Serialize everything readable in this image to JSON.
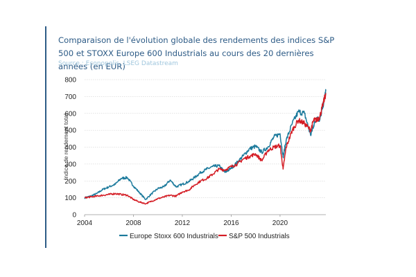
{
  "header": {
    "title": "Comparaison de l'évolution globale des rendements des indices S&P 500 et STOXX Europe 600 Industrials au cours des 20 dernières années (en EUR)",
    "source": "Source : Econopolis, LSEG Datastream"
  },
  "colors": {
    "accent": "#2d5b86",
    "source_text": "#9fc6dd",
    "europe": "#1c7a9c",
    "sp500": "#d41d25",
    "grid": "#c8c8c8"
  },
  "chart_data": {
    "type": "line",
    "ylabel": "Indice de rendement total",
    "xlabel": "",
    "xlim": [
      2004,
      2023.75
    ],
    "ylim": [
      0,
      800
    ],
    "x_ticks": [
      "2004",
      "2008",
      "2012",
      "2016",
      "2020"
    ],
    "y_ticks": [
      "0",
      "100",
      "200",
      "300",
      "400",
      "500",
      "600",
      "700",
      "800"
    ],
    "grid": "horizontal",
    "legend_position": "bottom",
    "series": [
      {
        "name": "Europe Stoxx 600 Industrials",
        "color": "#1c7a9c",
        "x": [
          2004,
          2004.5,
          2005,
          2005.5,
          2006,
          2006.5,
          2007,
          2007.5,
          2008,
          2008.5,
          2009,
          2009.5,
          2010,
          2010.5,
          2011,
          2011.5,
          2012,
          2012.5,
          2013,
          2013.5,
          2014,
          2014.5,
          2015,
          2015.5,
          2016,
          2016.5,
          2017,
          2017.5,
          2018,
          2018.5,
          2019,
          2019.5,
          2020,
          2020.25,
          2020.5,
          2021,
          2021.5,
          2022,
          2022.5,
          2022.75,
          2023,
          2023.25,
          2023.5,
          2023.75
        ],
        "values": [
          100,
          110,
          125,
          150,
          165,
          180,
          215,
          220,
          170,
          130,
          90,
          125,
          155,
          165,
          205,
          165,
          180,
          195,
          220,
          250,
          270,
          285,
          290,
          250,
          275,
          310,
          350,
          390,
          405,
          370,
          400,
          460,
          480,
          340,
          440,
          540,
          610,
          600,
          470,
          530,
          575,
          560,
          640,
          735
        ]
      },
      {
        "name": "S&P 500 Industrials",
        "color": "#d41d25",
        "x": [
          2004,
          2004.5,
          2005,
          2005.5,
          2006,
          2006.5,
          2007,
          2007.5,
          2008,
          2008.5,
          2009,
          2009.5,
          2010,
          2010.5,
          2011,
          2011.5,
          2012,
          2012.5,
          2013,
          2013.5,
          2014,
          2014.5,
          2015,
          2015.5,
          2016,
          2016.5,
          2017,
          2017.5,
          2018,
          2018.5,
          2019,
          2019.5,
          2020,
          2020.25,
          2020.5,
          2021,
          2021.5,
          2022,
          2022.5,
          2022.75,
          2023,
          2023.25,
          2023.5,
          2023.75
        ],
        "values": [
          100,
          105,
          110,
          115,
          120,
          125,
          120,
          115,
          90,
          75,
          65,
          80,
          95,
          105,
          115,
          110,
          135,
          145,
          175,
          200,
          215,
          240,
          270,
          265,
          285,
          300,
          330,
          345,
          360,
          320,
          380,
          400,
          410,
          270,
          400,
          500,
          560,
          540,
          500,
          560,
          560,
          580,
          650,
          720
        ]
      }
    ]
  }
}
